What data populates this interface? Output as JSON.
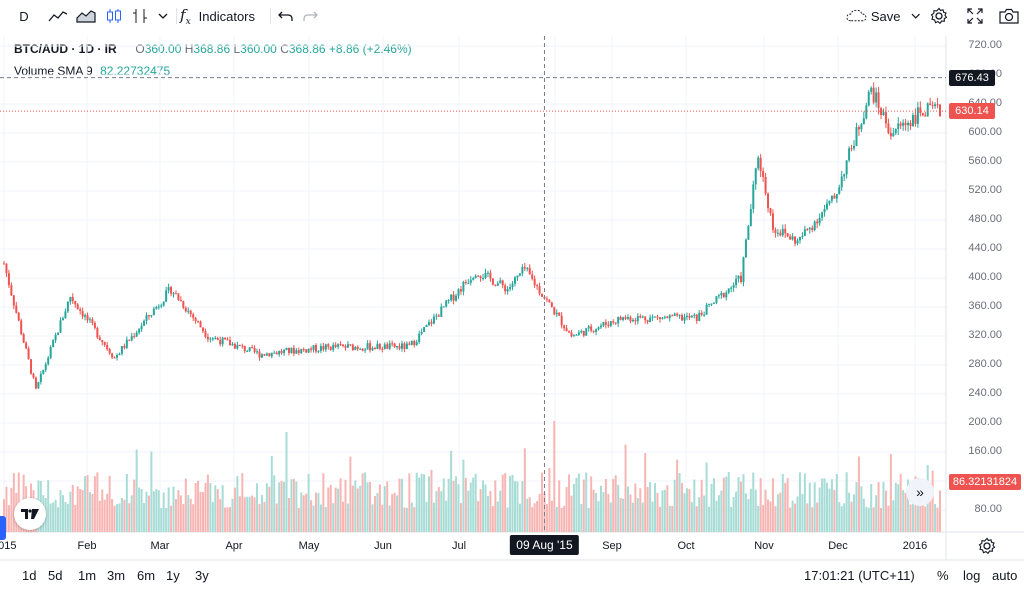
{
  "toolbar": {
    "interval": "D",
    "indicators_label": "Indicators",
    "save_label": "Save",
    "icons": [
      "bar-style-icon",
      "line-style-icon",
      "area-style-icon",
      "candle-style-icon",
      "compare-icon",
      "chevron-down-icon",
      "fx-icon",
      "undo-icon",
      "redo-icon",
      "cloud-icon",
      "settings-icon",
      "fullscreen-icon",
      "camera-icon"
    ]
  },
  "legend": {
    "symbol": "BTC/AUD · 1D · IR",
    "open_label": "O",
    "open": "360.00",
    "high_label": "H",
    "high": "368.86",
    "low_label": "L",
    "low": "360.00",
    "close_label": "C",
    "close": "368.86",
    "change": "+8.86 (+2.46%)",
    "volume_label": "Volume SMA 9",
    "volume_value": "82.22732475"
  },
  "price_axis": {
    "labels": [
      "720.00",
      "680.00",
      "640.00",
      "600.00",
      "560.00",
      "520.00",
      "480.00",
      "440.00",
      "400.00",
      "360.00",
      "320.00",
      "280.00",
      "240.00",
      "200.00",
      "160.00",
      "120.00",
      "80.00"
    ],
    "crosshair_tag": "676.43",
    "last_price_tag": "630.14",
    "volume_tag": "86.32131824"
  },
  "time_axis": {
    "labels": [
      "2015",
      "Feb",
      "Mar",
      "Apr",
      "May",
      "Jun",
      "Jul",
      "Aug",
      "Sep",
      "Oct",
      "Nov",
      "Dec",
      "2016"
    ],
    "crosshair_tag": "09 Aug '15"
  },
  "bottom_bar": {
    "ranges": [
      "1d",
      "5d",
      "1m",
      "3m",
      "6m",
      "1y",
      "3y"
    ],
    "clock": "17:01:21 (UTC+11)",
    "percent": "%",
    "log": "log",
    "auto": "auto"
  },
  "colors": {
    "up": "#26a69a",
    "down": "#ef5350",
    "up_volume": "#a8dcd6",
    "down_volume": "#f7b5b3",
    "crosshair_tag_bg": "#131722",
    "grid": "#f0f3fa"
  },
  "chart_data": {
    "type": "candlestick",
    "series_name": "BTC/AUD",
    "interval": "1D",
    "x_range": [
      "2015-01-01",
      "2016-01-17"
    ],
    "price_range": [
      50,
      730
    ],
    "key_prices": [
      {
        "date": "2015-01-01",
        "price": 420
      },
      {
        "date": "2015-01-14",
        "price": 245
      },
      {
        "date": "2015-01-28",
        "price": 375
      },
      {
        "date": "2015-02-15",
        "price": 290
      },
      {
        "date": "2015-03-10",
        "price": 385
      },
      {
        "date": "2015-03-25",
        "price": 320
      },
      {
        "date": "2015-04-15",
        "price": 295
      },
      {
        "date": "2015-05-15",
        "price": 305
      },
      {
        "date": "2015-06-15",
        "price": 305
      },
      {
        "date": "2015-07-12",
        "price": 410
      },
      {
        "date": "2015-07-25",
        "price": 385
      },
      {
        "date": "2015-08-01",
        "price": 412
      },
      {
        "date": "2015-08-20",
        "price": 320
      },
      {
        "date": "2015-09-10",
        "price": 345
      },
      {
        "date": "2015-10-10",
        "price": 345
      },
      {
        "date": "2015-10-28",
        "price": 400
      },
      {
        "date": "2015-11-04",
        "price": 570
      },
      {
        "date": "2015-11-10",
        "price": 470
      },
      {
        "date": "2015-11-20",
        "price": 450
      },
      {
        "date": "2015-12-05",
        "price": 510
      },
      {
        "date": "2015-12-20",
        "price": 660
      },
      {
        "date": "2015-12-28",
        "price": 600
      },
      {
        "date": "2016-01-10",
        "price": 630
      },
      {
        "date": "2016-01-17",
        "price": 630
      }
    ],
    "volume_range": [
      0,
      220
    ],
    "volume_sma_period": 9,
    "last_price": 630.14,
    "crosshair": {
      "date": "09 Aug '15",
      "price": 676.43
    }
  }
}
